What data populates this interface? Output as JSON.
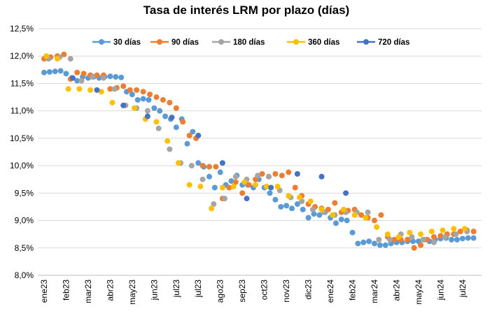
{
  "chart_data": {
    "type": "scatter",
    "title": "Tasa de interés LRM por plazo (días)",
    "xlabel": "",
    "ylabel": "",
    "ylim": [
      8.0,
      12.5
    ],
    "y_ticks": [
      8.0,
      8.5,
      9.0,
      9.5,
      10.0,
      10.5,
      11.0,
      11.5,
      12.0,
      12.5
    ],
    "y_tick_labels": [
      "8,0%",
      "8,5%",
      "9,0%",
      "9,5%",
      "10,0%",
      "10,5%",
      "11,0%",
      "11,5%",
      "12,0%",
      "12,5%"
    ],
    "x_tick_labels": [
      "ene23",
      "feb23",
      "mar23",
      "abr23",
      "may23",
      "jun23",
      "jul23",
      "jul23",
      "ago23",
      "sep23",
      "oct23",
      "nov23",
      "dic23",
      "ene24",
      "feb24",
      "mar24",
      "abr24",
      "may24",
      "jun24",
      "jul24"
    ],
    "legend_position": "top",
    "grid": true,
    "series": [
      {
        "name": "30 días",
        "color": "#5B9BD5",
        "x": [
          0.0,
          0.25,
          0.5,
          0.75,
          1.0,
          1.25,
          1.5,
          1.75,
          2.0,
          2.25,
          2.5,
          2.75,
          3.0,
          3.25,
          3.5,
          3.75,
          4.0,
          4.25,
          4.5,
          4.75,
          5.0,
          5.25,
          5.5,
          5.75,
          6.0,
          6.25,
          6.5,
          6.75,
          7.0,
          7.25,
          7.5,
          7.75,
          8.0,
          8.25,
          8.5,
          8.75,
          9.0,
          9.25,
          9.5,
          9.75,
          10.0,
          10.25,
          10.5,
          10.75,
          11.0,
          11.25,
          11.5,
          11.75,
          12.0,
          12.25,
          12.5,
          12.75,
          13.0,
          13.25,
          13.5,
          13.75,
          14.0,
          14.25,
          14.5,
          14.75,
          15.0,
          15.25,
          15.5,
          15.75,
          16.0,
          16.25,
          16.5,
          16.75,
          17.0,
          17.25,
          17.5,
          17.75,
          18.0,
          18.25,
          18.5,
          18.75,
          19.0,
          19.25,
          19.5
        ],
        "values": [
          11.7,
          11.71,
          11.72,
          11.73,
          11.68,
          11.6,
          11.55,
          11.62,
          11.6,
          11.62,
          11.6,
          11.62,
          11.63,
          11.62,
          11.61,
          11.35,
          11.3,
          11.2,
          11.22,
          11.2,
          11.05,
          11.0,
          10.9,
          10.85,
          10.7,
          10.85,
          10.4,
          10.62,
          10.05,
          9.98,
          9.8,
          9.6,
          9.88,
          9.65,
          9.72,
          9.82,
          9.65,
          9.65,
          9.6,
          9.75,
          9.6,
          9.5,
          9.38,
          9.25,
          9.27,
          9.22,
          9.3,
          9.2,
          9.05,
          9.12,
          9.1,
          9.15,
          9.05,
          8.95,
          9.02,
          9.0,
          8.78,
          8.58,
          8.6,
          8.62,
          8.58,
          8.55,
          8.55,
          8.58,
          8.6,
          8.6,
          8.62,
          8.62,
          8.62,
          8.65,
          8.62,
          8.65,
          8.67,
          8.68,
          8.65,
          8.65,
          8.67,
          8.68,
          8.68
        ]
      },
      {
        "name": "90 días",
        "color": "#ED7D31",
        "x": [
          0.0,
          0.3,
          0.6,
          0.9,
          1.2,
          1.5,
          1.8,
          2.1,
          2.4,
          2.7,
          3.0,
          3.3,
          3.6,
          3.9,
          4.2,
          4.5,
          4.8,
          5.1,
          5.4,
          5.7,
          6.0,
          6.3,
          6.6,
          6.9,
          7.2,
          7.5,
          7.8,
          8.1,
          8.4,
          8.7,
          9.0,
          9.3,
          9.6,
          9.9,
          10.2,
          10.5,
          10.8,
          11.1,
          11.4,
          11.7,
          12.0,
          12.3,
          12.6,
          12.9,
          13.2,
          13.5,
          13.8,
          14.1,
          14.4,
          14.7,
          15.0,
          15.3,
          15.6,
          15.9,
          16.2,
          16.5,
          16.8,
          17.1,
          17.4,
          17.7,
          18.0,
          18.3,
          18.6,
          18.9,
          19.2,
          19.5
        ],
        "values": [
          11.95,
          11.98,
          12.0,
          12.03,
          11.58,
          11.7,
          11.68,
          11.65,
          11.65,
          11.65,
          11.4,
          11.42,
          11.45,
          11.38,
          11.38,
          11.35,
          11.3,
          11.25,
          11.2,
          11.15,
          11.05,
          10.8,
          10.55,
          10.5,
          10.0,
          9.98,
          9.98,
          9.4,
          9.6,
          9.7,
          9.5,
          9.65,
          9.75,
          9.85,
          9.8,
          9.85,
          9.82,
          9.88,
          9.6,
          9.45,
          9.3,
          9.25,
          9.22,
          9.2,
          9.32,
          9.15,
          9.18,
          9.2,
          9.1,
          9.05,
          9.0,
          9.1,
          8.7,
          8.65,
          8.65,
          8.65,
          8.5,
          8.55,
          8.65,
          8.7,
          8.72,
          8.75,
          8.75,
          8.8,
          8.82,
          8.8
        ]
      },
      {
        "name": "180 días",
        "color": "#A5A5A5",
        "x": [
          0.2,
          0.7,
          1.2,
          1.7,
          2.2,
          2.7,
          3.2,
          3.7,
          4.2,
          4.7,
          5.2,
          5.7,
          6.2,
          6.7,
          7.2,
          7.7,
          8.2,
          8.7,
          9.2,
          9.7,
          10.2,
          10.7,
          11.2,
          11.7,
          12.2,
          12.7,
          13.2,
          13.7,
          14.2,
          14.7,
          15.2,
          15.7,
          16.2,
          16.7,
          17.2,
          17.7,
          18.2,
          18.7,
          19.2
        ],
        "values": [
          11.95,
          11.98,
          11.95,
          11.55,
          11.62,
          11.6,
          11.4,
          11.1,
          11.05,
          11.0,
          10.68,
          10.3,
          10.05,
          10.0,
          9.75,
          9.3,
          9.4,
          9.8,
          9.75,
          9.82,
          9.8,
          9.55,
          9.42,
          9.35,
          9.2,
          9.15,
          9.1,
          9.15,
          9.15,
          9.15,
          8.65,
          8.65,
          8.75,
          8.7,
          8.65,
          8.6,
          8.7,
          8.75,
          8.8
        ]
      },
      {
        "name": "360 días",
        "color": "#FFC000",
        "x": [
          0.1,
          0.6,
          1.1,
          1.6,
          2.1,
          2.6,
          3.1,
          3.6,
          4.1,
          4.6,
          5.1,
          5.6,
          6.1,
          6.6,
          7.1,
          7.6,
          8.1,
          8.6,
          9.1,
          9.6,
          10.1,
          10.6,
          11.1,
          11.6,
          12.1,
          12.6,
          13.1,
          13.6,
          14.1,
          14.6,
          15.1,
          15.6,
          16.1,
          16.6,
          17.1,
          17.6,
          18.1,
          18.6,
          19.1
        ],
        "values": [
          12.0,
          11.95,
          11.4,
          11.4,
          11.38,
          11.35,
          11.15,
          11.1,
          11.05,
          10.85,
          10.8,
          10.45,
          10.05,
          9.65,
          9.62,
          9.22,
          9.6,
          9.62,
          9.7,
          9.65,
          9.62,
          9.62,
          9.45,
          9.42,
          9.35,
          9.2,
          9.1,
          9.2,
          9.1,
          9.05,
          8.88,
          8.75,
          8.7,
          8.78,
          8.75,
          8.8,
          8.82,
          8.85,
          8.85
        ]
      },
      {
        "name": "720 días",
        "color": "#4472C4",
        "x": [
          1.3,
          2.4,
          3.6,
          4.7,
          5.8,
          7.0,
          8.1,
          9.2,
          10.3,
          11.5,
          12.6,
          13.7
        ],
        "values": [
          11.6,
          11.38,
          11.1,
          10.9,
          10.88,
          10.55,
          10.05,
          9.4,
          9.6,
          9.85,
          9.8,
          9.5
        ]
      }
    ]
  }
}
